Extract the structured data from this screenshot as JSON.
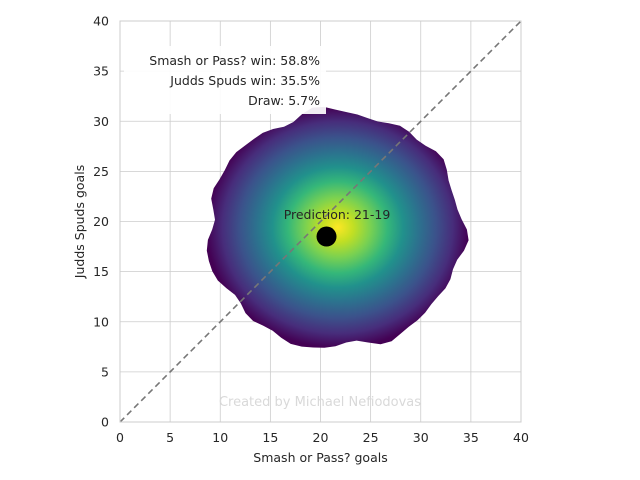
{
  "chart_data": {
    "type": "heatmap",
    "xlabel": "Smash or Pass? goals",
    "ylabel": "Judds Spuds goals",
    "xlim": [
      0,
      40
    ],
    "ylim": [
      0,
      40
    ],
    "xticks": [
      0,
      5,
      10,
      15,
      20,
      25,
      30,
      35,
      40
    ],
    "yticks": [
      0,
      5,
      10,
      15,
      20,
      25,
      30,
      35,
      40
    ],
    "grid": true,
    "colormap": "viridis",
    "density_center": [
      20.5,
      18.5
    ],
    "density_extent": {
      "x": [
        8.8,
        34.2
      ],
      "y": [
        7.4,
        31.0
      ]
    },
    "prediction_point": {
      "x": 20.6,
      "y": 18.5
    },
    "prediction_label": "Prediction: 21-19",
    "diagonal_line": {
      "from": [
        0,
        0
      ],
      "to": [
        40,
        40
      ],
      "style": "dashed"
    },
    "stats": [
      "Smash or Pass? win: 58.8%",
      "Judds Spuds win: 35.5%",
      "Draw: 5.7%"
    ],
    "watermark": "Created by Michael Nefiodovas",
    "colors": {
      "grid": "#cccccc",
      "axis": "#cccccc",
      "diagonal": "#777777",
      "point": "#000000",
      "text": "#262626",
      "watermark": "#d9d9d9"
    }
  }
}
